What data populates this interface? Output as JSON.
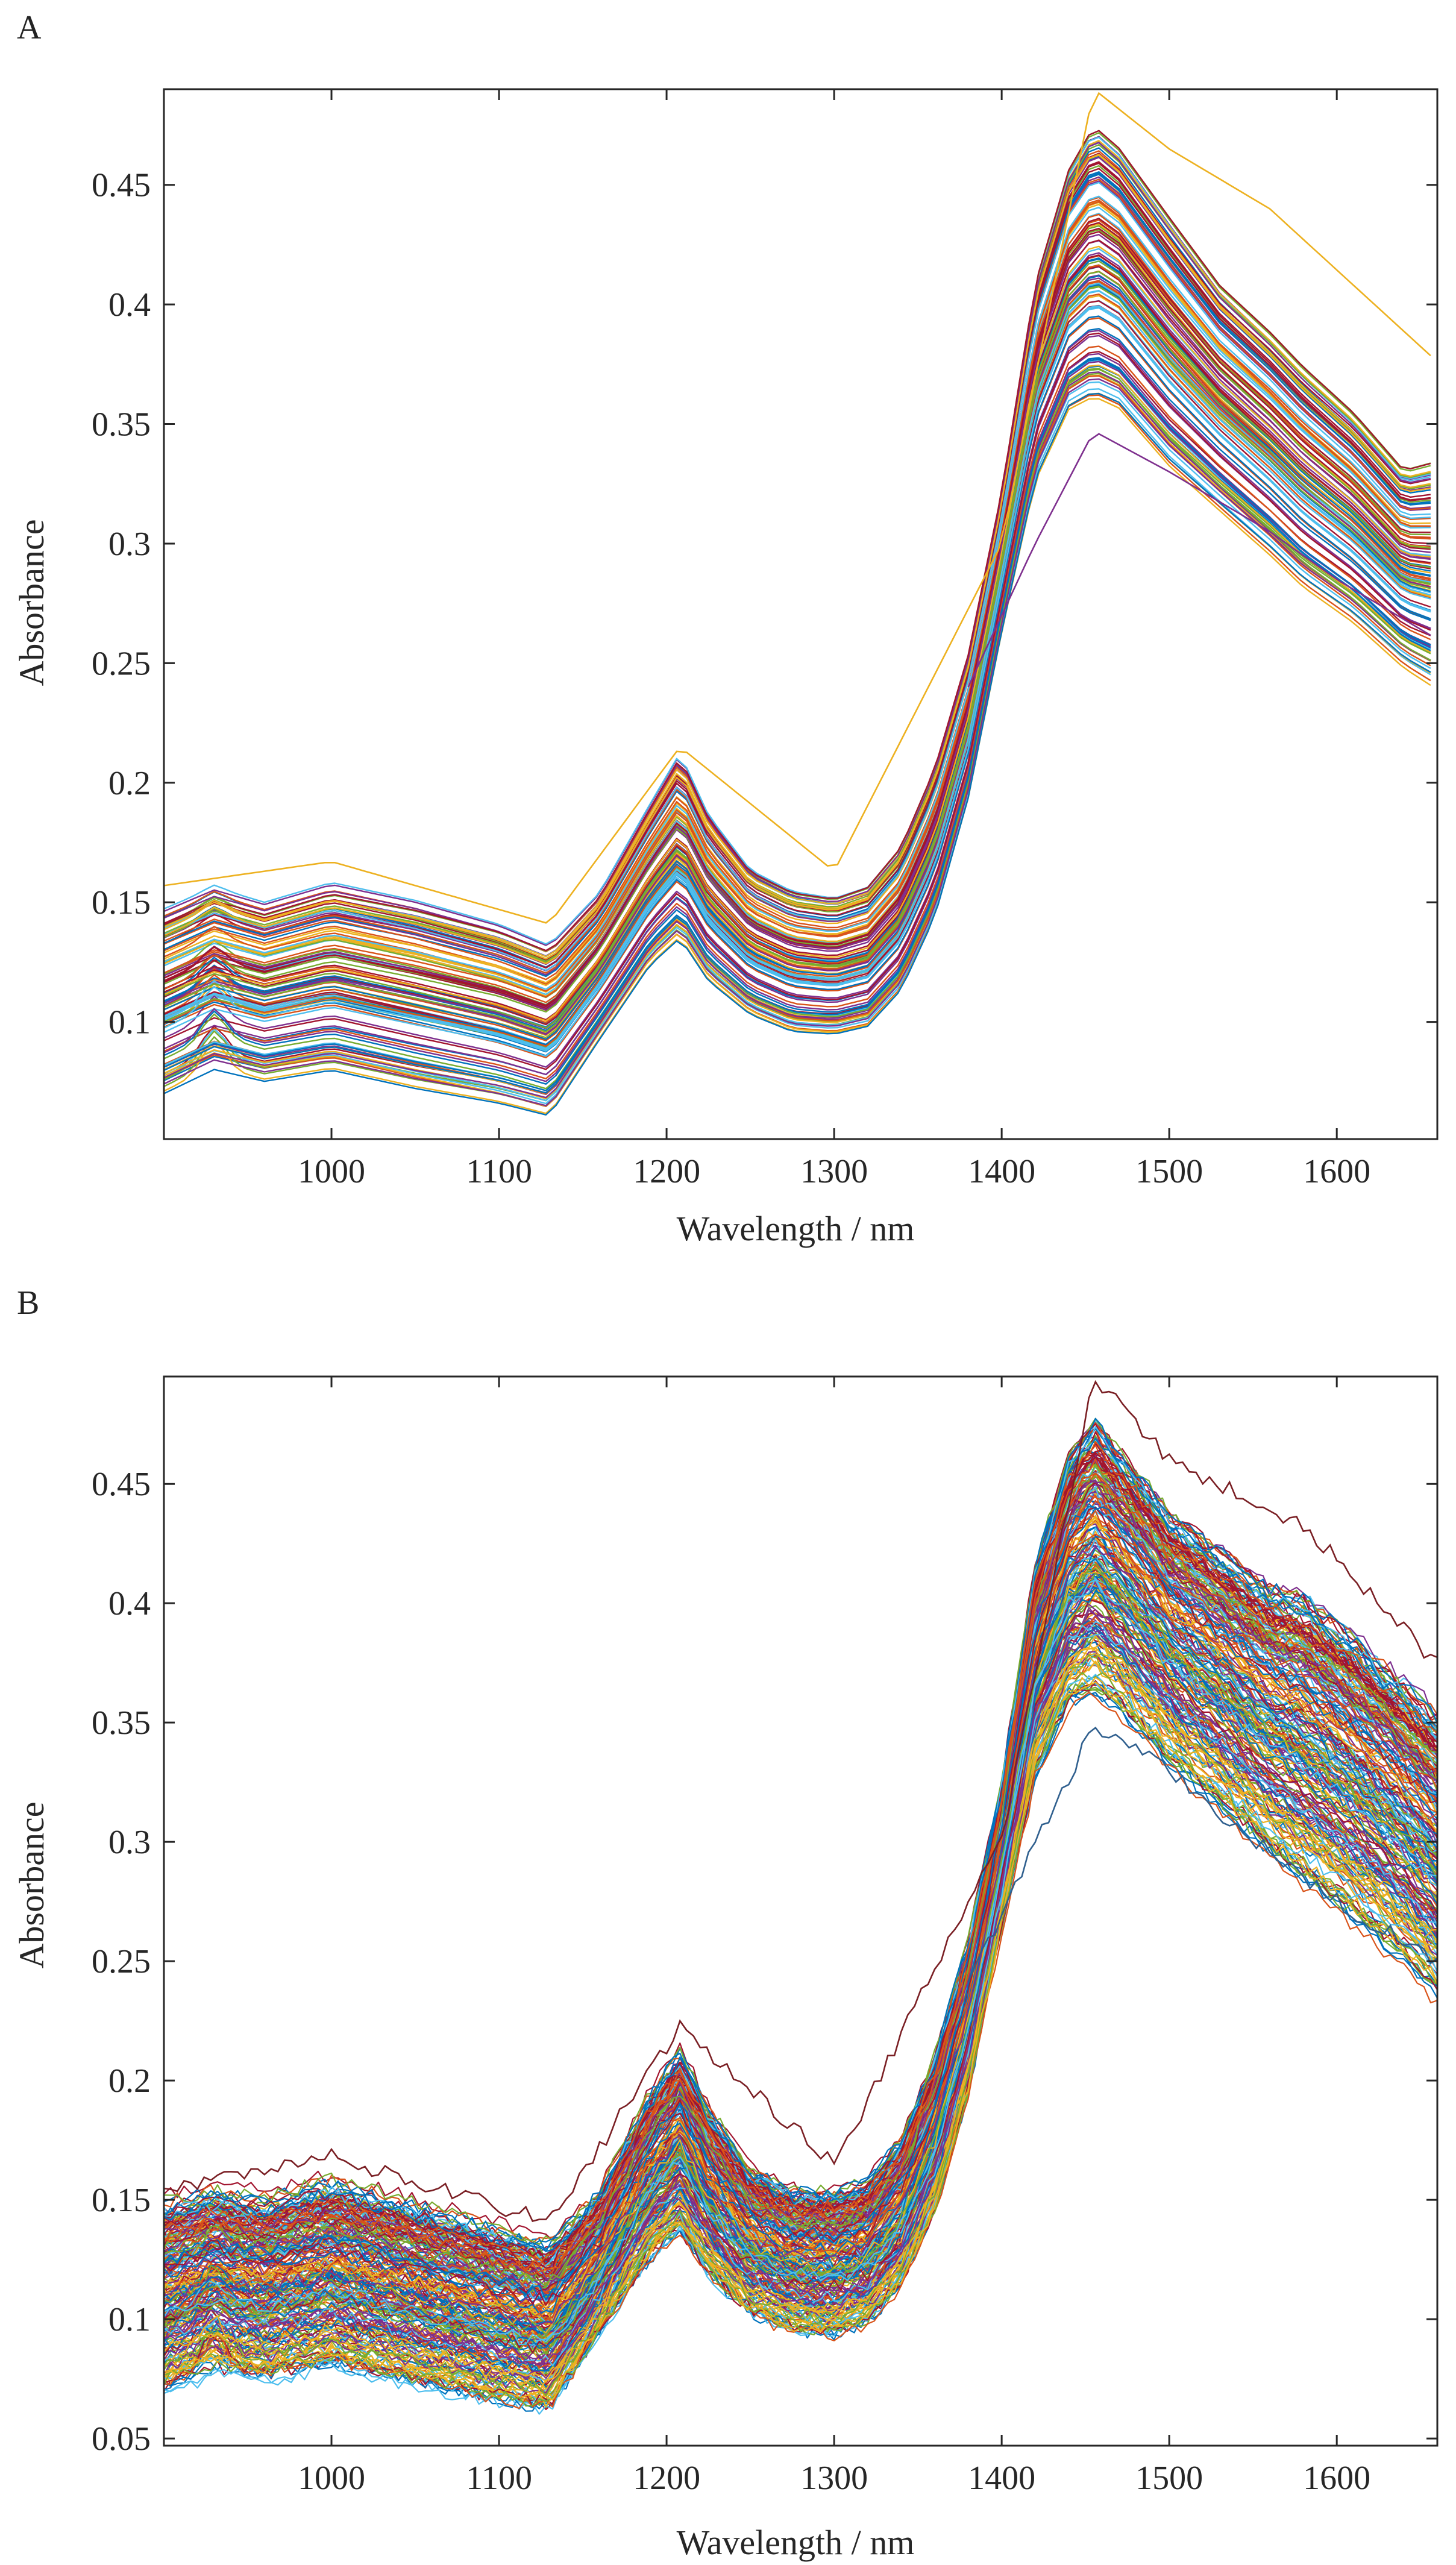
{
  "chart_data": [
    {
      "panel_label": "A",
      "type": "line",
      "title": "",
      "xlabel": "Wavelength / nm",
      "ylabel": "Absorbance",
      "xlim": [
        900,
        1660
      ],
      "ylim": [
        0.051,
        0.49
      ],
      "x_ticks": [
        1000,
        1100,
        1200,
        1300,
        1400,
        1500,
        1600
      ],
      "x_tick_labels": [
        "1000",
        "1100",
        "1200",
        "1300",
        "1400",
        "1500",
        "1600"
      ],
      "y_ticks": [
        0.1,
        0.15,
        0.2,
        0.25,
        0.3,
        0.35,
        0.4,
        0.45
      ],
      "y_tick_labels": [
        "0.1",
        "0.15",
        "0.2",
        "0.25",
        "0.3",
        "0.35",
        "0.4",
        "0.45"
      ],
      "grid": false,
      "legend": false,
      "noisy": false,
      "series_description": "About 120 NIR absorbance spectra (smooth), each a multicolored line",
      "envelope": {
        "x": [
          900,
          930,
          960,
          1000,
          1050,
          1100,
          1130,
          1160,
          1190,
          1208,
          1225,
          1250,
          1275,
          1300,
          1320,
          1340,
          1360,
          1380,
          1400,
          1420,
          1440,
          1455,
          1470,
          1500,
          1530,
          1560,
          1580,
          1610,
          1640,
          1660
        ],
        "low": [
          0.062,
          0.072,
          0.067,
          0.071,
          0.063,
          0.057,
          0.052,
          0.085,
          0.115,
          0.125,
          0.108,
          0.095,
          0.088,
          0.087,
          0.09,
          0.105,
          0.135,
          0.185,
          0.255,
          0.315,
          0.343,
          0.347,
          0.343,
          0.32,
          0.303,
          0.285,
          0.272,
          0.258,
          0.24,
          0.23
        ],
        "high": [
          0.155,
          0.164,
          0.158,
          0.167,
          0.16,
          0.15,
          0.141,
          0.162,
          0.2,
          0.223,
          0.196,
          0.172,
          0.163,
          0.16,
          0.165,
          0.182,
          0.215,
          0.262,
          0.33,
          0.42,
          0.47,
          0.49,
          0.48,
          0.45,
          0.42,
          0.4,
          0.385,
          0.365,
          0.34,
          0.345
        ]
      },
      "outliers": [
        {
          "name": "top-yellow",
          "x": [
            900,
            1000,
            1130,
            1208,
            1300,
            1400,
            1455,
            1500,
            1560,
            1660
          ],
          "y": [
            0.157,
            0.167,
            0.141,
            0.215,
            0.163,
            0.3,
            0.49,
            0.465,
            0.44,
            0.376
          ]
        },
        {
          "name": "bottom-purple",
          "x": [
            1380,
            1420,
            1455,
            1500,
            1560,
            1600,
            1660
          ],
          "y": [
            0.24,
            0.3,
            0.347,
            0.33,
            0.305,
            0.285,
            0.26
          ]
        }
      ]
    },
    {
      "panel_label": "B",
      "type": "line",
      "title": "",
      "xlabel": "Wavelength / nm",
      "ylabel": "Absorbance",
      "xlim": [
        900,
        1660
      ],
      "ylim": [
        0.047,
        0.495
      ],
      "x_ticks": [
        1000,
        1100,
        1200,
        1300,
        1400,
        1500,
        1600
      ],
      "x_tick_labels": [
        "1000",
        "1100",
        "1200",
        "1300",
        "1400",
        "1500",
        "1600"
      ],
      "y_ticks": [
        0.05,
        0.1,
        0.15,
        0.2,
        0.25,
        0.3,
        0.35,
        0.4,
        0.45
      ],
      "y_tick_labels": [
        "0.05",
        "0.1",
        "0.15",
        "0.2",
        "0.25",
        "0.3",
        "0.35",
        "0.4",
        "0.45"
      ],
      "grid": false,
      "legend": false,
      "noisy": true,
      "series_description": "About 240 NIR absorbance spectra with added noise, multicolored lines",
      "envelope": {
        "x": [
          900,
          930,
          960,
          1000,
          1050,
          1100,
          1130,
          1160,
          1190,
          1208,
          1225,
          1250,
          1275,
          1300,
          1320,
          1340,
          1360,
          1380,
          1400,
          1420,
          1440,
          1455,
          1470,
          1500,
          1530,
          1560,
          1580,
          1610,
          1640,
          1660
        ],
        "low": [
          0.06,
          0.068,
          0.065,
          0.07,
          0.062,
          0.055,
          0.052,
          0.085,
          0.115,
          0.125,
          0.108,
          0.093,
          0.086,
          0.085,
          0.09,
          0.105,
          0.135,
          0.185,
          0.255,
          0.315,
          0.343,
          0.347,
          0.34,
          0.318,
          0.3,
          0.28,
          0.268,
          0.252,
          0.235,
          0.22
        ],
        "high": [
          0.158,
          0.163,
          0.16,
          0.168,
          0.158,
          0.148,
          0.141,
          0.162,
          0.205,
          0.224,
          0.198,
          0.172,
          0.163,
          0.162,
          0.167,
          0.185,
          0.22,
          0.268,
          0.335,
          0.43,
          0.478,
          0.495,
          0.482,
          0.455,
          0.44,
          0.425,
          0.422,
          0.405,
          0.385,
          0.372
        ]
      },
      "outliers": [
        {
          "name": "top-brown",
          "x": [
            900,
            1000,
            1130,
            1208,
            1300,
            1400,
            1455,
            1500,
            1580,
            1660
          ],
          "y": [
            0.155,
            0.168,
            0.141,
            0.222,
            0.165,
            0.3,
            0.495,
            0.46,
            0.433,
            0.374
          ]
        },
        {
          "name": "bottom-blue",
          "x": [
            1380,
            1420,
            1455,
            1500,
            1560,
            1600,
            1660
          ],
          "y": [
            0.24,
            0.3,
            0.348,
            0.33,
            0.295,
            0.275,
            0.25
          ]
        }
      ]
    }
  ]
}
